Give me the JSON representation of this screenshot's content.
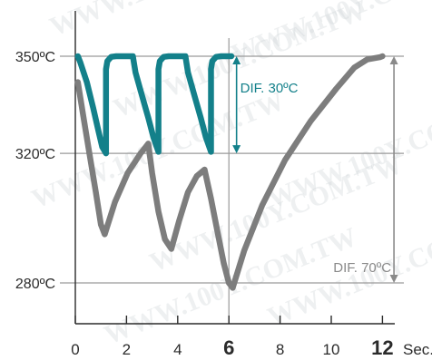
{
  "chart_data": {
    "type": "line",
    "x_unit_label": "Sec.",
    "x_ticks": [
      {
        "value": 0,
        "label": "0",
        "bold": false,
        "color": "#2b2b2b"
      },
      {
        "value": 2,
        "label": "2",
        "bold": false,
        "color": "#2b2b2b"
      },
      {
        "value": 4,
        "label": "4",
        "bold": false,
        "color": "#2b2b2b"
      },
      {
        "value": 6,
        "label": "6",
        "bold": true,
        "color": "#13808a"
      },
      {
        "value": 8,
        "label": "8",
        "bold": false,
        "color": "#2b2b2b"
      },
      {
        "value": 10,
        "label": "10",
        "bold": false,
        "color": "#2b2b2b"
      },
      {
        "value": 12,
        "label": "12",
        "bold": true,
        "color": "#111111"
      }
    ],
    "y_ticks": [
      {
        "value": 350,
        "label": "350ºC"
      },
      {
        "value": 320,
        "label": "320ºC"
      },
      {
        "value": 280,
        "label": "280ºC"
      }
    ],
    "xlim": [
      0,
      13
    ],
    "ylim": [
      266,
      364
    ],
    "series": [
      {
        "color": "#13808a",
        "points": [
          [
            0.1,
            350
          ],
          [
            0.2,
            348
          ],
          [
            0.45,
            342
          ],
          [
            0.7,
            334
          ],
          [
            0.9,
            327
          ],
          [
            1.05,
            322
          ],
          [
            1.2,
            320
          ],
          [
            1.2,
            346
          ],
          [
            1.25,
            348.5
          ],
          [
            1.4,
            349.8
          ],
          [
            1.6,
            350
          ],
          [
            2.25,
            350
          ],
          [
            2.35,
            345
          ],
          [
            2.6,
            338
          ],
          [
            2.85,
            331
          ],
          [
            3.05,
            325
          ],
          [
            3.25,
            320.5
          ],
          [
            3.25,
            346
          ],
          [
            3.3,
            348.5
          ],
          [
            3.45,
            349.8
          ],
          [
            3.65,
            350
          ],
          [
            4.3,
            350
          ],
          [
            4.4,
            345
          ],
          [
            4.65,
            338
          ],
          [
            4.9,
            331
          ],
          [
            5.1,
            325
          ],
          [
            5.3,
            320.5
          ],
          [
            5.3,
            346
          ],
          [
            5.35,
            348.5
          ],
          [
            5.5,
            349.8
          ],
          [
            5.7,
            350
          ],
          [
            6.1,
            350
          ]
        ]
      },
      {
        "color": "#7d7d7d",
        "points": [
          [
            0.1,
            342
          ],
          [
            0.3,
            332
          ],
          [
            0.55,
            320
          ],
          [
            0.8,
            308
          ],
          [
            1.0,
            298
          ],
          [
            1.15,
            295
          ],
          [
            1.55,
            305
          ],
          [
            2.05,
            314
          ],
          [
            2.55,
            320
          ],
          [
            2.75,
            322
          ],
          [
            2.85,
            323
          ],
          [
            3.0,
            314
          ],
          [
            3.25,
            302
          ],
          [
            3.5,
            293.5
          ],
          [
            3.75,
            290.5
          ],
          [
            4.05,
            299
          ],
          [
            4.4,
            308
          ],
          [
            4.75,
            313
          ],
          [
            5.05,
            315
          ],
          [
            5.3,
            306
          ],
          [
            5.55,
            296
          ],
          [
            5.8,
            286
          ],
          [
            6.0,
            280
          ],
          [
            6.15,
            278.5
          ],
          [
            6.6,
            290
          ],
          [
            7.3,
            304
          ],
          [
            8.2,
            318
          ],
          [
            9.2,
            330
          ],
          [
            10.2,
            340
          ],
          [
            10.9,
            346.5
          ],
          [
            11.4,
            349
          ],
          [
            11.9,
            349.7
          ],
          [
            12.0,
            350
          ]
        ]
      }
    ],
    "annotations": [
      {
        "text": "DIF. 30ºC",
        "color": "#13808a",
        "from": 350,
        "to": 320,
        "x": 6.3
      },
      {
        "text": "DIF. 70ºC",
        "color": "#8a8a8a",
        "from": 350,
        "to": 280,
        "x": 12.45
      }
    ],
    "watermark": "WWW.100Y.COM.TW",
    "grid": "horizontal lines at y ticks, vertical line at 6"
  }
}
